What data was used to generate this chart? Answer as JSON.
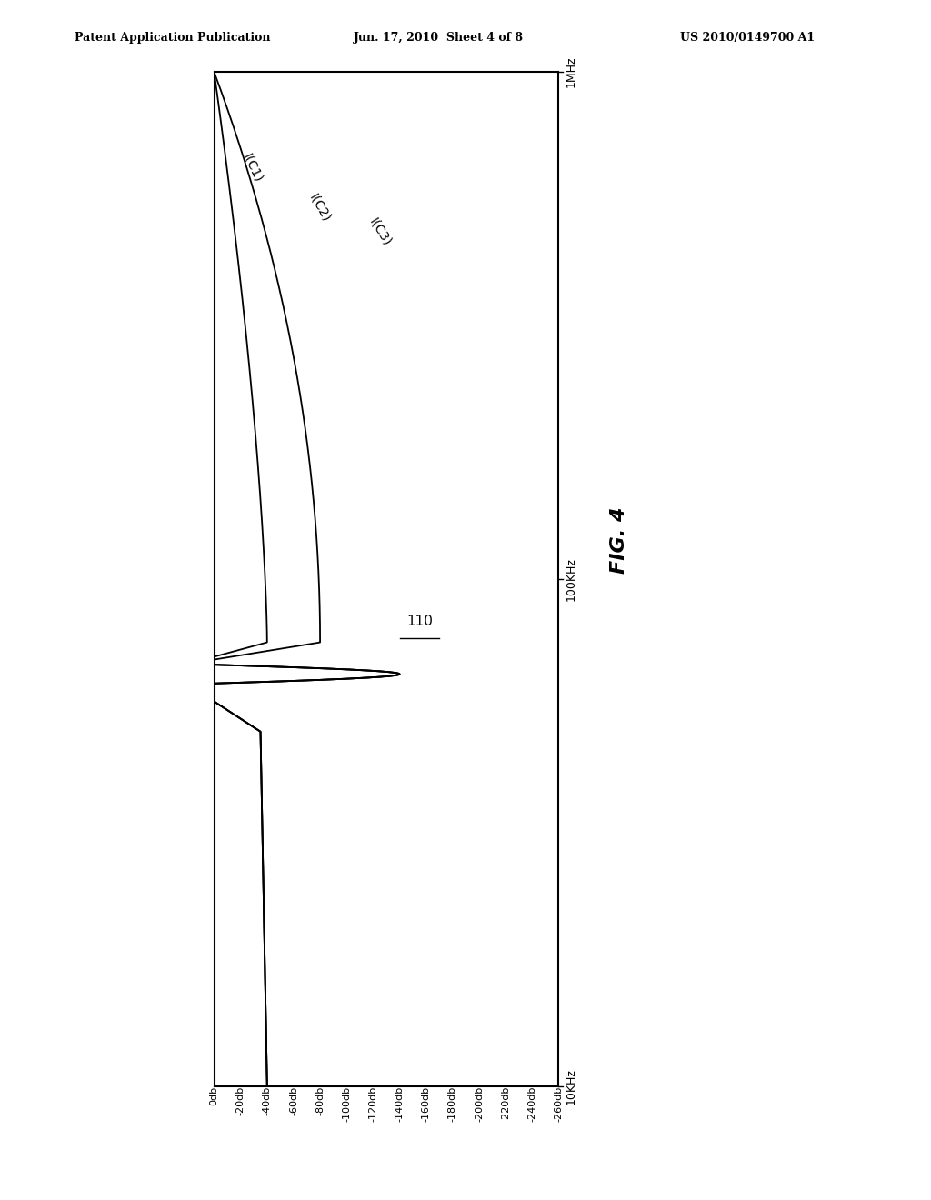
{
  "title_header": "Patent Application Publication",
  "title_date": "Jun. 17, 2010  Sheet 4 of 8",
  "title_patent": "US 2010/0149700 A1",
  "fig_label": "FIG. 4",
  "ref_label": "110",
  "freq_labels": [
    "10KHz",
    "100KHz",
    "1MHz"
  ],
  "db_ticks": [
    0,
    -20,
    -40,
    -60,
    -80,
    -100,
    -120,
    -140,
    -160,
    -180,
    -200,
    -220,
    -240,
    -260
  ],
  "db_tick_labels": [
    "0db",
    "-20db",
    "-40db",
    "-60db",
    "-80db",
    "-100db",
    "-120db",
    "-140db",
    "-160db",
    "-180db",
    "-200db",
    "-220db",
    "-240db",
    "-260db"
  ],
  "background_color": "#ffffff",
  "line_color": "#000000"
}
